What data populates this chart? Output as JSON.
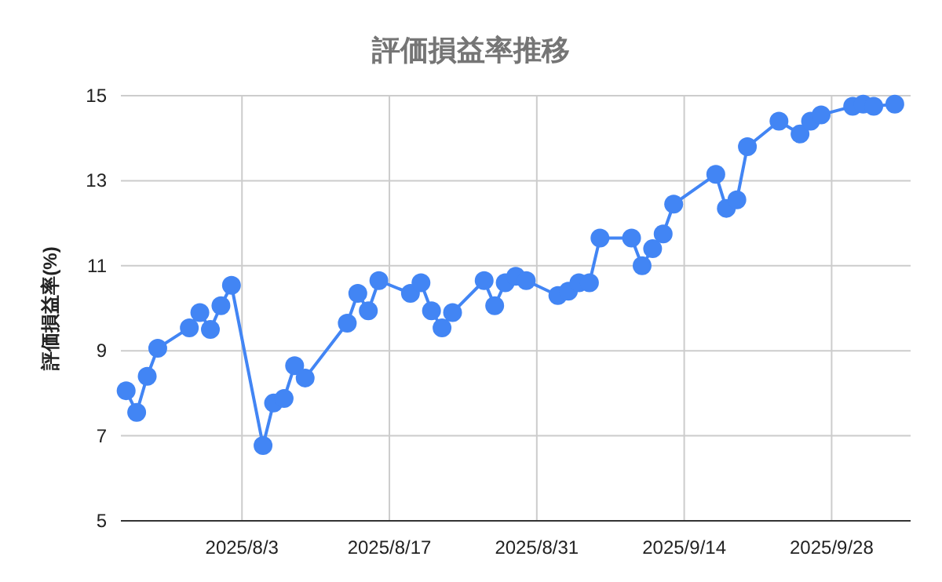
{
  "chart_data": {
    "type": "line",
    "title": "評価損益率推移",
    "ylabel": "評価損益率(%)",
    "x": [
      "2025-07-23",
      "2025-07-24",
      "2025-07-25",
      "2025-07-26",
      "2025-07-29",
      "2025-07-30",
      "2025-07-31",
      "2025-08-01",
      "2025-08-02",
      "2025-08-05",
      "2025-08-06",
      "2025-08-07",
      "2025-08-08",
      "2025-08-09",
      "2025-08-13",
      "2025-08-14",
      "2025-08-15",
      "2025-08-16",
      "2025-08-19",
      "2025-08-20",
      "2025-08-21",
      "2025-08-22",
      "2025-08-23",
      "2025-08-26",
      "2025-08-27",
      "2025-08-28",
      "2025-08-29",
      "2025-08-30",
      "2025-09-02",
      "2025-09-03",
      "2025-09-04",
      "2025-09-05",
      "2025-09-06",
      "2025-09-09",
      "2025-09-10",
      "2025-09-11",
      "2025-09-12",
      "2025-09-13",
      "2025-09-17",
      "2025-09-18",
      "2025-09-19",
      "2025-09-20",
      "2025-09-23",
      "2025-09-25",
      "2025-09-26",
      "2025-09-27",
      "2025-09-30",
      "2025-10-01",
      "2025-10-02",
      "2025-10-04"
    ],
    "series": [
      {
        "color": "#4285f4",
        "values": [
          8.06,
          7.55,
          8.4,
          9.06,
          9.54,
          9.9,
          9.5,
          10.06,
          10.54,
          6.77,
          7.77,
          7.88,
          8.65,
          8.36,
          9.65,
          10.35,
          9.94,
          10.65,
          10.35,
          10.6,
          9.94,
          9.54,
          9.9,
          10.65,
          10.06,
          10.6,
          10.75,
          10.65,
          10.3,
          10.4,
          10.6,
          10.6,
          11.65,
          11.65,
          11.0,
          11.4,
          11.75,
          12.45,
          13.15,
          12.35,
          12.55,
          13.8,
          14.4,
          14.1,
          14.4,
          14.55,
          14.75,
          14.8,
          14.75,
          14.8
        ]
      }
    ],
    "xlim": [
      "2025-07-22T12:00",
      "2025-10-05T12:00"
    ],
    "xticks": [
      {
        "value": "2025-08-03",
        "label": "2025/8/3"
      },
      {
        "value": "2025-08-17",
        "label": "2025/8/17"
      },
      {
        "value": "2025-08-31",
        "label": "2025/8/31"
      },
      {
        "value": "2025-09-14",
        "label": "2025/9/14"
      },
      {
        "value": "2025-09-28",
        "label": "2025/9/28"
      }
    ],
    "ylim": [
      5,
      15
    ],
    "yticks": [
      5,
      7,
      9,
      11,
      13,
      15
    ],
    "grid": true,
    "marker": "circle",
    "line_style": "solid"
  }
}
